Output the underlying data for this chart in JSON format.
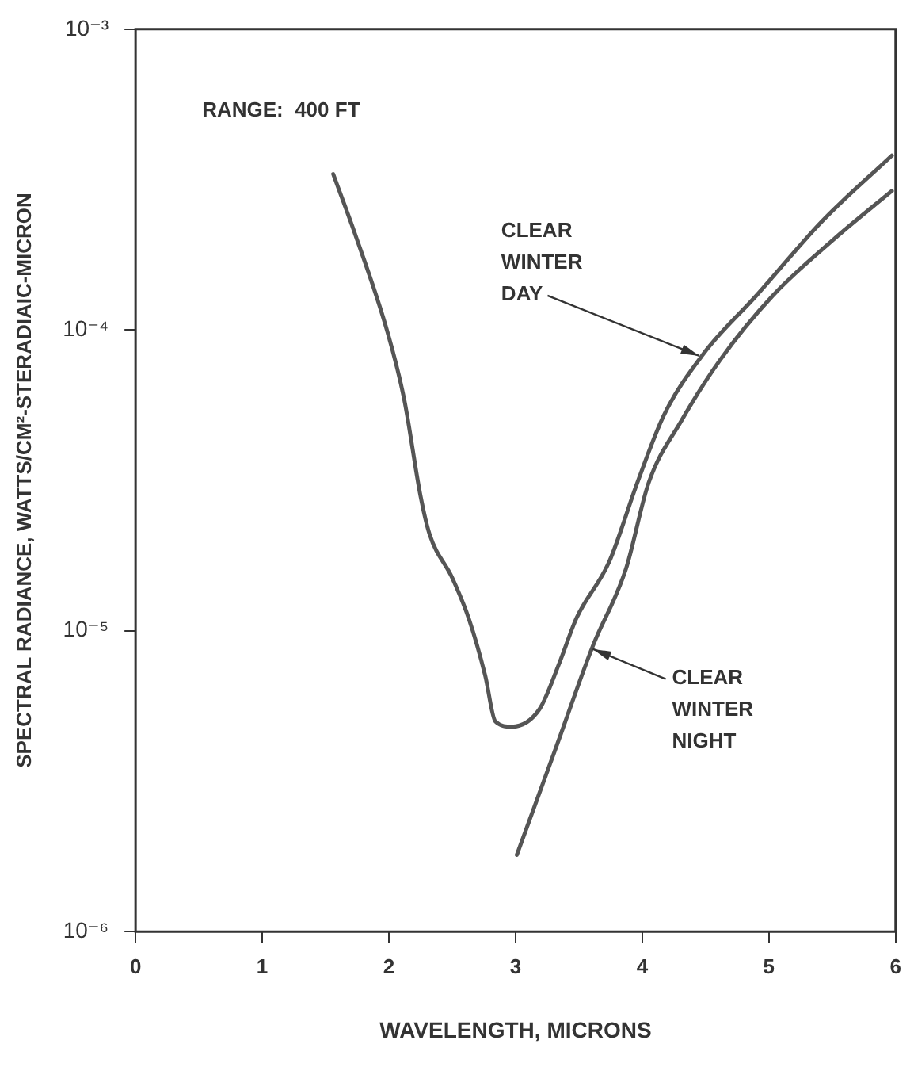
{
  "chart_data": {
    "type": "line",
    "xlabel": "WAVELENGTH, MICRONS",
    "ylabel": "SPECTRAL RADIANCE, WATTS/CM²-STERADIAIC-MICRON",
    "log": "y",
    "grid": false,
    "legend": false,
    "marker": "none",
    "line_style": "solid",
    "xlim": [
      0,
      6
    ],
    "xticks": [
      0,
      1,
      2,
      3,
      4,
      5,
      6
    ],
    "ylim": [
      1e-06,
      0.001
    ],
    "yticks": [
      {
        "value": 1e-06,
        "label": "10⁻⁶"
      },
      {
        "value": 1e-05,
        "label": "10⁻⁵"
      },
      {
        "value": 0.0001,
        "label": "10⁻⁴"
      },
      {
        "value": 0.001,
        "label": "10⁻³"
      }
    ],
    "series": [
      {
        "color": "#555555",
        "x": [
          1.56,
          1.73,
          1.99,
          2.12,
          2.25,
          2.32,
          2.5,
          2.63,
          2.76,
          2.84,
          2.97,
          3.19,
          3.35,
          3.48,
          3.74,
          3.96,
          4.17,
          4.48,
          4.9,
          5.42,
          5.97
        ],
        "values": [
          0.00033,
          0.00021,
          9.8e-05,
          5.9e-05,
          2.8e-05,
          2.1e-05,
          1.5e-05,
          1.1e-05,
          7.1e-06,
          5e-06,
          4.8e-06,
          5.5e-06,
          7.9e-06,
          1.1e-05,
          1.7e-05,
          3.1e-05,
          5.2e-05,
          8.3e-05,
          0.00013,
          0.00023,
          0.00038
        ]
      },
      {
        "color": "#555555",
        "x": [
          3.01,
          3.32,
          3.61,
          3.87,
          4.05,
          4.31,
          4.61,
          5.03,
          5.51,
          5.97
        ],
        "values": [
          1.8e-06,
          4.1e-06,
          8.9e-06,
          1.6e-05,
          3.1e-05,
          5e-05,
          7.9e-05,
          0.00013,
          0.0002,
          0.00029
        ]
      }
    ],
    "annotations": [
      "RANGE:  400 FT",
      {
        "text": "CLEAR WINTER DAY",
        "x": 4.45,
        "y": 8.2e-05
      },
      {
        "text": "CLEAR WINTER NIGHT",
        "x": 3.61,
        "y": 8.7e-06
      }
    ]
  }
}
